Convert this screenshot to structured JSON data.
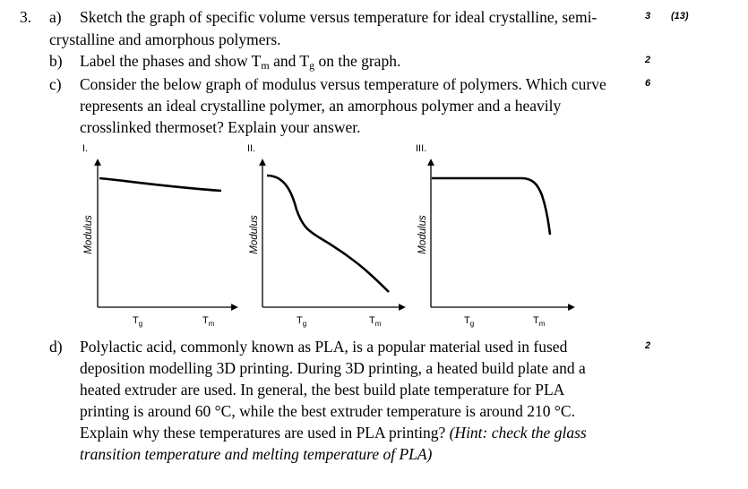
{
  "question": {
    "number": "3.",
    "total_marks": "(13)",
    "a": {
      "label": "a)",
      "line1": "Sketch the graph of specific volume versus temperature for ideal crystalline, semi-",
      "line2": "crystalline and amorphous polymers.",
      "marks": "3"
    },
    "b": {
      "label": "b)",
      "text_pre": "Label the phases and show T",
      "sub_m": "m",
      "text_mid": " and T",
      "sub_g": "g",
      "text_post": " on the graph.",
      "marks": "2"
    },
    "c": {
      "label": "c)",
      "line1": "Consider the below graph of modulus versus temperature of polymers. Which curve",
      "line2": "represents an ideal crystalline polymer, an amorphous polymer and a heavily",
      "line3": "crosslinked thermoset? Explain your answer.",
      "marks": "6"
    },
    "d": {
      "label": "d)",
      "line1": "Polylactic acid, commonly known as PLA, is a popular material used in fused",
      "line2": "deposition modelling 3D printing. During 3D printing, a heated build plate and a",
      "line3": "heated extruder are used. In general, the best build plate temperature for PLA",
      "line4": "printing is around 60 °C, while the best extruder temperature is around 210 °C.",
      "line5": "Explain why these temperatures are used in PLA printing? ",
      "hint_line5": "(Hint: check the glass",
      "hint_line6": "transition temperature and melting temperature of PLA)",
      "marks": "2"
    }
  },
  "graphs": [
    {
      "label": "I.",
      "ylabel": "Modulus",
      "tg_label": "T",
      "tg_sub": "g",
      "tm_label": "T",
      "tm_sub": "m",
      "curve": "nearly flat, slight decline across the range"
    },
    {
      "label": "II.",
      "ylabel": "Modulus",
      "tg_label": "T",
      "tg_sub": "g",
      "tm_label": "T",
      "tm_sub": "m",
      "curve": "steep drop near Tg, continued decline to Tm"
    },
    {
      "label": "III.",
      "ylabel": "Modulus",
      "tg_label": "T",
      "tg_sub": "g",
      "tm_label": "T",
      "tm_sub": "m",
      "curve": "flat until near Tm, then sharp drop"
    }
  ]
}
